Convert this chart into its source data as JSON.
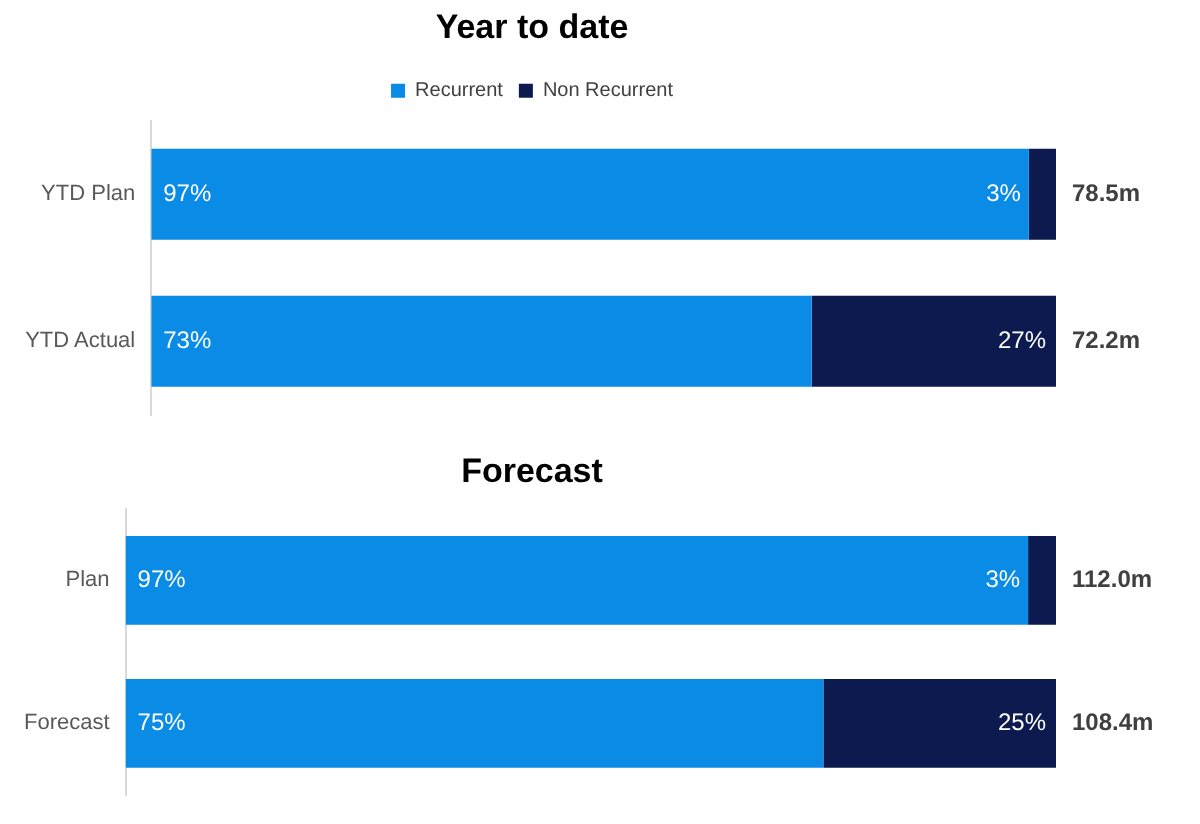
{
  "chart_data": [
    {
      "type": "bar",
      "orientation": "horizontal",
      "stacked": true,
      "tick_labels": "y",
      "title": "Year to date",
      "legend": "top",
      "categories": [
        "YTD Plan",
        "YTD Actual"
      ],
      "series": [
        {
          "name": "Recurrent",
          "color": "#0a8ce6",
          "values": [
            97,
            73
          ],
          "value_labels": [
            "97%",
            "73%"
          ]
        },
        {
          "name": "Non Recurrent",
          "color": "#0c1a4f",
          "values": [
            3,
            27
          ],
          "value_labels": [
            "3%",
            "27%"
          ]
        }
      ],
      "annotations": [
        "78.5m",
        "72.2m"
      ]
    },
    {
      "type": "bar",
      "orientation": "horizontal",
      "stacked": true,
      "tick_labels": "y",
      "title": "Forecast",
      "categories": [
        "Plan",
        "Forecast"
      ],
      "series": [
        {
          "color": "#0a8ce6",
          "values": [
            97,
            75
          ],
          "value_labels": [
            "97%",
            "75%"
          ]
        },
        {
          "color": "#0c1a4f",
          "values": [
            3,
            25
          ],
          "value_labels": [
            "3%",
            "25%"
          ]
        }
      ],
      "annotations": [
        "112.0m",
        "108.4m"
      ]
    }
  ]
}
